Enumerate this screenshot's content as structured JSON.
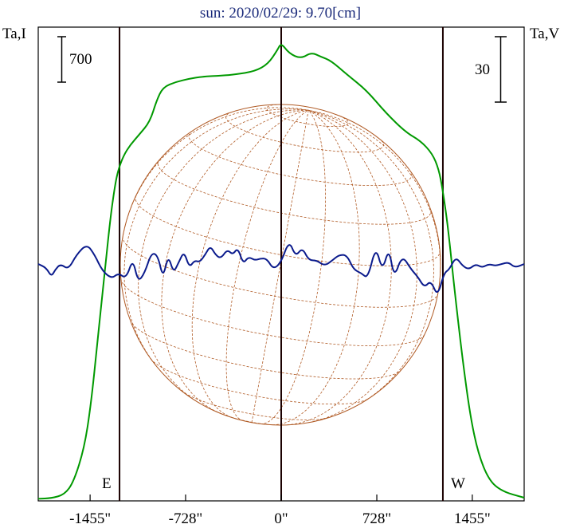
{
  "header": {
    "title": "sun: 2020/02/29: 9.70[cm]"
  },
  "colors": {
    "stokes_i": "#009900",
    "stokes_v": "#0a1a8c",
    "disk": "#b05a24",
    "frame": "#000000",
    "vlines": "#1a0000"
  },
  "chart_data": {
    "type": "line",
    "title": "sun: 2020/02/29: 9.70[cm]",
    "xlabel": "",
    "left_axis_label": "Ta,I",
    "right_axis_label": "Ta,V",
    "xlim": [
      -1850,
      1850
    ],
    "x_ticks": [
      -1455,
      -728,
      0,
      728,
      1455
    ],
    "x_tick_labels": [
      "-1455\"",
      "-728\"",
      "0\"",
      "728\"",
      "1455\""
    ],
    "limb_lines": [
      -1231,
      0,
      1231
    ],
    "limb_labels": {
      "east": "E",
      "west": "W"
    },
    "scale_bars": {
      "left": {
        "label": "700",
        "units": 700
      },
      "right": {
        "label": "30",
        "units": 30
      }
    },
    "disk": {
      "radius_arcsec": 1231,
      "grid": "heliographic"
    },
    "series": [
      {
        "name": "Ta,I",
        "axis": "left",
        "ylim": [
          0,
          4500
        ],
        "points": [
          [
            -1850,
            20
          ],
          [
            -1750,
            25
          ],
          [
            -1650,
            60
          ],
          [
            -1580,
            180
          ],
          [
            -1500,
            500
          ],
          [
            -1450,
            900
          ],
          [
            -1400,
            1500
          ],
          [
            -1350,
            2100
          ],
          [
            -1300,
            2700
          ],
          [
            -1265,
            3000
          ],
          [
            -1240,
            3150
          ],
          [
            -1200,
            3280
          ],
          [
            -1150,
            3380
          ],
          [
            -1080,
            3480
          ],
          [
            -1000,
            3600
          ],
          [
            -950,
            3800
          ],
          [
            -900,
            3930
          ],
          [
            -800,
            3980
          ],
          [
            -700,
            4010
          ],
          [
            -600,
            4030
          ],
          [
            -450,
            4040
          ],
          [
            -350,
            4050
          ],
          [
            -200,
            4080
          ],
          [
            -100,
            4150
          ],
          [
            -30,
            4280
          ],
          [
            0,
            4350
          ],
          [
            60,
            4250
          ],
          [
            150,
            4200
          ],
          [
            230,
            4260
          ],
          [
            300,
            4220
          ],
          [
            380,
            4180
          ],
          [
            500,
            4050
          ],
          [
            650,
            3900
          ],
          [
            800,
            3680
          ],
          [
            950,
            3500
          ],
          [
            1060,
            3420
          ],
          [
            1150,
            3300
          ],
          [
            1200,
            3150
          ],
          [
            1230,
            2950
          ],
          [
            1270,
            2600
          ],
          [
            1320,
            2000
          ],
          [
            1380,
            1350
          ],
          [
            1440,
            800
          ],
          [
            1500,
            450
          ],
          [
            1580,
            200
          ],
          [
            1680,
            90
          ],
          [
            1850,
            30
          ]
        ]
      },
      {
        "name": "Ta,V",
        "axis": "right",
        "ylim": [
          -130,
          130
        ],
        "points": [
          [
            -1850,
            0
          ],
          [
            -1790,
            -2
          ],
          [
            -1750,
            -7
          ],
          [
            -1720,
            -3
          ],
          [
            -1680,
            0
          ],
          [
            -1620,
            -3
          ],
          [
            -1560,
            5
          ],
          [
            -1480,
            11
          ],
          [
            -1420,
            5
          ],
          [
            -1360,
            -4
          ],
          [
            -1290,
            -8
          ],
          [
            -1240,
            -5
          ],
          [
            -1180,
            -8
          ],
          [
            -1130,
            3
          ],
          [
            -1090,
            -10
          ],
          [
            -1040,
            -5
          ],
          [
            -990,
            6
          ],
          [
            -940,
            5
          ],
          [
            -900,
            -8
          ],
          [
            -860,
            5
          ],
          [
            -820,
            -5
          ],
          [
            -780,
            1
          ],
          [
            -740,
            7
          ],
          [
            -700,
            -2
          ],
          [
            -660,
            2
          ],
          [
            -620,
            1
          ],
          [
            -580,
            5
          ],
          [
            -540,
            10
          ],
          [
            -500,
            5
          ],
          [
            -460,
            3
          ],
          [
            -410,
            8
          ],
          [
            -370,
            5
          ],
          [
            -330,
            9
          ],
          [
            -290,
            0
          ],
          [
            -250,
            4
          ],
          [
            -200,
            2
          ],
          [
            -160,
            3
          ],
          [
            -110,
            3
          ],
          [
            -60,
            -3
          ],
          [
            0,
            1
          ],
          [
            60,
            13
          ],
          [
            110,
            4
          ],
          [
            160,
            9
          ],
          [
            210,
            2
          ],
          [
            270,
            2
          ],
          [
            330,
            -1
          ],
          [
            390,
            2
          ],
          [
            440,
            5
          ],
          [
            500,
            5
          ],
          [
            550,
            -3
          ],
          [
            610,
            -5
          ],
          [
            660,
            -8
          ],
          [
            720,
            10
          ],
          [
            770,
            -4
          ],
          [
            820,
            9
          ],
          [
            860,
            -8
          ],
          [
            920,
            5
          ],
          [
            990,
            -3
          ],
          [
            1040,
            -7
          ],
          [
            1090,
            -13
          ],
          [
            1140,
            -9
          ],
          [
            1190,
            -18
          ],
          [
            1240,
            -5
          ],
          [
            1280,
            -3
          ],
          [
            1330,
            4
          ],
          [
            1380,
            -1
          ],
          [
            1430,
            -3
          ],
          [
            1480,
            0
          ],
          [
            1530,
            -2
          ],
          [
            1580,
            0
          ],
          [
            1630,
            -1
          ],
          [
            1680,
            0
          ],
          [
            1730,
            1
          ],
          [
            1780,
            -2
          ],
          [
            1850,
            0
          ]
        ]
      }
    ]
  }
}
